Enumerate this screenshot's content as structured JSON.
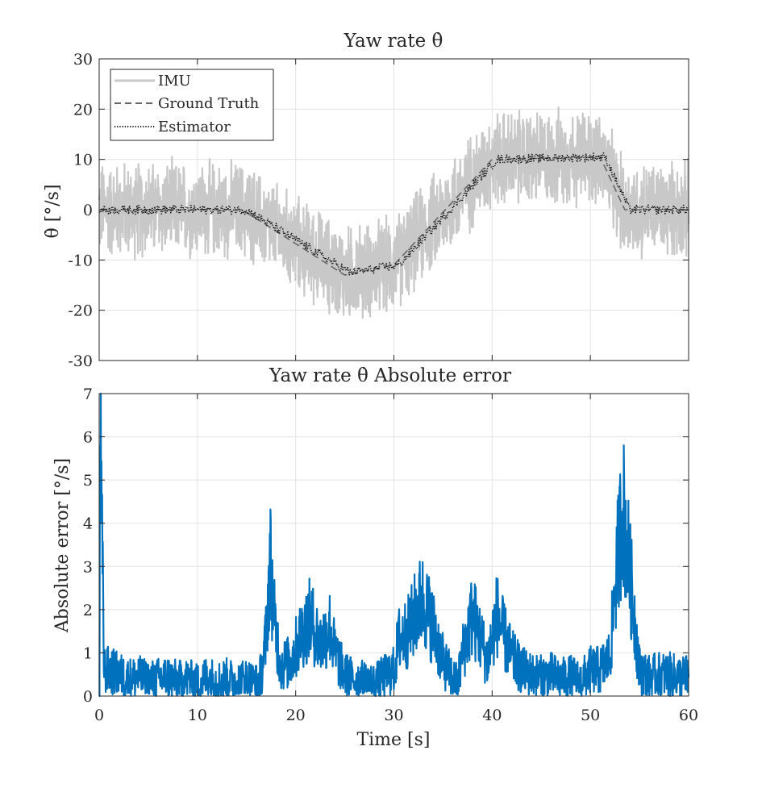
{
  "chart_data": [
    {
      "type": "line",
      "title": "Yaw rate θ̇",
      "xlabel": "",
      "ylabel": "θ̇ [°/s]",
      "xlim": [
        0,
        60
      ],
      "ylim": [
        -30,
        30
      ],
      "xticks": [
        0,
        10,
        20,
        30,
        40,
        50,
        60
      ],
      "yticks": [
        -30,
        -20,
        -10,
        0,
        10,
        20,
        30
      ],
      "ytick_labels": [
        "-30",
        "-20",
        "-10",
        "0",
        "10",
        "20",
        "30"
      ],
      "grid": true,
      "legend": "top-left",
      "series": [
        {
          "name": "IMU",
          "style": "solid",
          "color": "#c8c8c8",
          "noise_amplitude": 11,
          "x": [
            0,
            14.5,
            17,
            25,
            30,
            40,
            51,
            53.5,
            60
          ],
          "y": [
            0,
            0,
            -3,
            -13,
            -11,
            10,
            10.5,
            0,
            0
          ]
        },
        {
          "name": "Ground Truth",
          "style": "dashed",
          "color": "#666666",
          "x": [
            0,
            14.5,
            17,
            25,
            30,
            40,
            51,
            53.5,
            60
          ],
          "y": [
            0,
            0,
            -3,
            -13,
            -11,
            10,
            10.5,
            0,
            0
          ]
        },
        {
          "name": "Estimator",
          "style": "dotted",
          "color": "#111111",
          "x": [
            0,
            15,
            17.5,
            25.5,
            30.5,
            40.5,
            51.5,
            54,
            60
          ],
          "y": [
            0,
            0,
            -3,
            -12.5,
            -11,
            10,
            10.5,
            0,
            0
          ]
        }
      ]
    },
    {
      "type": "line",
      "title": "Yaw rate θ̇ Absolute error",
      "xlabel": "Time [s]",
      "ylabel": "Absolute error [°/s]",
      "xlim": [
        0,
        60
      ],
      "ylim": [
        0,
        7
      ],
      "xticks": [
        0,
        10,
        20,
        30,
        40,
        50,
        60
      ],
      "yticks": [
        0,
        1,
        2,
        3,
        4,
        5,
        6,
        7
      ],
      "grid": true,
      "series": [
        {
          "name": "",
          "color": "#0072bd",
          "x": [
            0,
            0.1,
            0.5,
            1,
            2,
            3,
            4,
            5,
            6,
            7,
            8,
            9,
            10,
            11,
            12,
            13,
            14,
            15,
            16,
            16.5,
            17,
            17.4,
            17.8,
            18.5,
            19.5,
            20.5,
            21.5,
            22.5,
            23.5,
            24,
            25,
            26,
            27,
            28,
            29,
            30,
            30.5,
            31.5,
            32.5,
            33,
            34,
            35,
            36,
            36.5,
            37,
            38,
            39,
            39.5,
            40.5,
            41,
            42,
            43,
            44,
            45,
            46,
            47,
            48,
            49,
            50,
            51,
            52,
            52.5,
            53,
            53.3,
            53.8,
            54.5,
            55,
            56,
            57,
            58,
            59,
            60
          ],
          "y": [
            0,
            6.1,
            0.6,
            0.6,
            0.5,
            0.4,
            0.45,
            0.35,
            0.4,
            0.45,
            0.35,
            0.4,
            0.3,
            0.45,
            0.35,
            0.4,
            0.35,
            0.4,
            0.3,
            0.5,
            1.4,
            3.2,
            1.8,
            0.7,
            0.8,
            1.4,
            1.8,
            1.2,
            1.6,
            1.0,
            0.5,
            0.4,
            0.35,
            0.3,
            0.45,
            0.6,
            1.3,
            1.5,
            2.1,
            2.2,
            1.6,
            0.8,
            0.4,
            0.3,
            1.0,
            1.9,
            1.2,
            0.8,
            1.9,
            1.5,
            0.9,
            0.6,
            0.5,
            0.45,
            0.5,
            0.4,
            0.45,
            0.35,
            0.6,
            0.6,
            0.9,
            2.5,
            3.7,
            4.4,
            3.3,
            1.8,
            0.6,
            0.45,
            0.5,
            0.5,
            0.45,
            0.45
          ]
        }
      ]
    }
  ]
}
